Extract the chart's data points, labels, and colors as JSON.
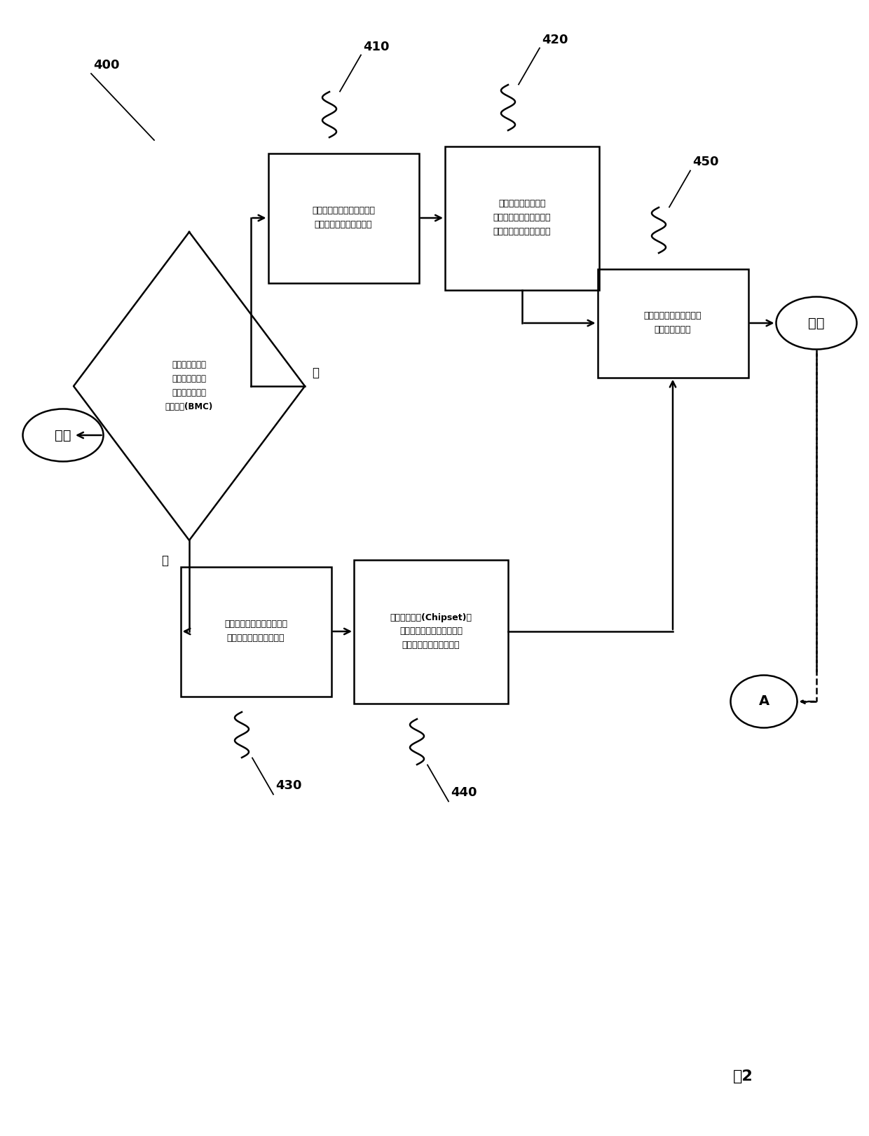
{
  "bg_color": "#ffffff",
  "start_text": "开始",
  "end_text": "结束",
  "nodeA_text": "A",
  "diamond_text": "判断一计算机系\n统的一主机板是\n否具有一基板管\n理控制器(BMC)",
  "box410_text": "依据该控制器判断单元的该\n判断结果提供一用户界面",
  "box420_text": "以该基板管理控制器\n监测该计算机系统中至少\n一个风扇模块的风扇转速",
  "box430_text": "依据该控制器判断单元的该\n判断结果提供一用户界面",
  "box440_text": "通过一芯片组(Chipset)去\n监测该计算机系统中至少一\n个该风扇模块的风扇转速",
  "box450_text": "分别显示出所述风扇模块\n的所述风扇转速",
  "yes_text": "是",
  "no_text": "否",
  "fig_label": "图2",
  "label_400": "400",
  "label_410": "410",
  "label_420": "420",
  "label_430": "430",
  "label_440": "440",
  "label_450": "450"
}
